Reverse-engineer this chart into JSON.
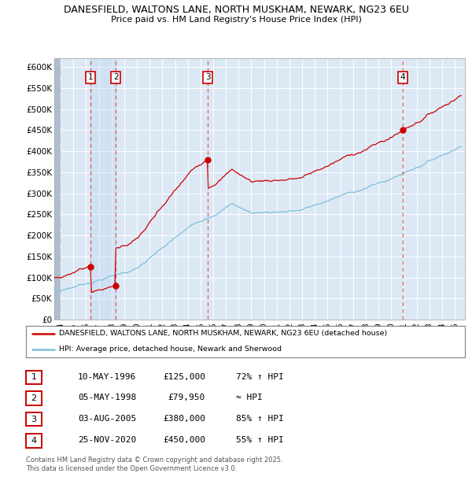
{
  "title_line1": "DANESFIELD, WALTONS LANE, NORTH MUSKHAM, NEWARK, NG23 6EU",
  "title_line2": "Price paid vs. HM Land Registry's House Price Index (HPI)",
  "xlim": [
    1993.5,
    2025.8
  ],
  "ylim": [
    0,
    620000
  ],
  "yticks": [
    0,
    50000,
    100000,
    150000,
    200000,
    250000,
    300000,
    350000,
    400000,
    450000,
    500000,
    550000,
    600000
  ],
  "ytick_labels": [
    "£0",
    "£50K",
    "£100K",
    "£150K",
    "£200K",
    "£250K",
    "£300K",
    "£350K",
    "£400K",
    "£450K",
    "£500K",
    "£550K",
    "£600K"
  ],
  "xticks": [
    1994,
    1995,
    1996,
    1997,
    1998,
    1999,
    2000,
    2001,
    2002,
    2003,
    2004,
    2005,
    2006,
    2007,
    2008,
    2009,
    2010,
    2011,
    2012,
    2013,
    2014,
    2015,
    2016,
    2017,
    2018,
    2019,
    2020,
    2021,
    2022,
    2023,
    2024,
    2025
  ],
  "plot_bg_color": "#dce9f5",
  "grid_color": "#ffffff",
  "hpi_color": "#7fbfdd",
  "property_color": "#cc0000",
  "dashed_line_color": "#dd4444",
  "hatch_color": "#c8d8e8",
  "sales": [
    {
      "num": 1,
      "year": 1996.36,
      "price": 125000,
      "date": "10-MAY-1996",
      "price_str": "£125,000",
      "hpi_rel": "72% ↑ HPI"
    },
    {
      "num": 2,
      "year": 1998.34,
      "price": 79950,
      "date": "05-MAY-1998",
      "price_str": "£79,950",
      "hpi_rel": "≈ HPI"
    },
    {
      "num": 3,
      "year": 2005.58,
      "price": 380000,
      "date": "03-AUG-2005",
      "price_str": "£380,000",
      "hpi_rel": "85% ↑ HPI"
    },
    {
      "num": 4,
      "year": 2020.9,
      "price": 450000,
      "date": "25-NOV-2020",
      "price_str": "£450,000",
      "hpi_rel": "55% ↑ HPI"
    }
  ],
  "legend_label_red": "DANESFIELD, WALTONS LANE, NORTH MUSKHAM, NEWARK, NG23 6EU (detached house)",
  "legend_label_blue": "HPI: Average price, detached house, Newark and Sherwood",
  "footnote": "Contains HM Land Registry data © Crown copyright and database right 2025.\nThis data is licensed under the Open Government Licence v3.0."
}
